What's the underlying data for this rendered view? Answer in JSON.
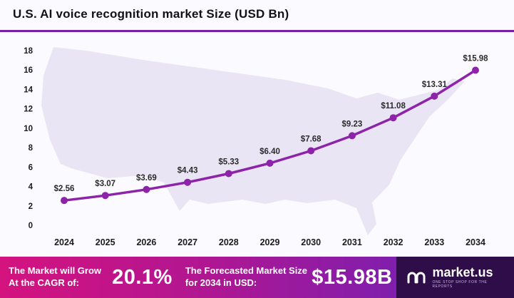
{
  "title": "U.S. AI voice recognition market Size (USD Bn)",
  "chart_data": {
    "type": "line",
    "categories": [
      "2024",
      "2025",
      "2026",
      "2027",
      "2028",
      "2029",
      "2030",
      "2031",
      "2032",
      "2033",
      "2034"
    ],
    "values": [
      2.56,
      3.07,
      3.69,
      4.43,
      5.33,
      6.4,
      7.68,
      9.23,
      11.08,
      13.31,
      15.98
    ],
    "point_labels": [
      "$2.56",
      "$3.07",
      "$3.69",
      "$4.43",
      "$5.33",
      "$6.40",
      "$7.68",
      "$9.23",
      "$11.08",
      "$13.31",
      "$15.98"
    ],
    "title": "U.S. AI voice recognition market Size (USD Bn)",
    "xlabel": "",
    "ylabel": "",
    "ylim": [
      0,
      18
    ],
    "ytick_step": 2,
    "grid": false,
    "legend": "none",
    "line_color": "#8d23a8"
  },
  "colors": {
    "accent_underline": "#7b1fa2",
    "line": "#8d23a8",
    "footer_gradient_left": "#d4137e",
    "footer_gradient_right": "#7e1fae",
    "brand_background": "#2e0d49",
    "map_watermark": "#e9e5f4"
  },
  "footer": {
    "cagr_label": "The Market will Grow At the CAGR of:",
    "cagr_value": "20.1%",
    "forecast_label": "The Forecasted Market Size for 2034 in USD:",
    "forecast_value": "$15.98B",
    "brand": "market.us",
    "brand_tagline": "ONE STOP SHOP FOR THE REPORTS"
  }
}
